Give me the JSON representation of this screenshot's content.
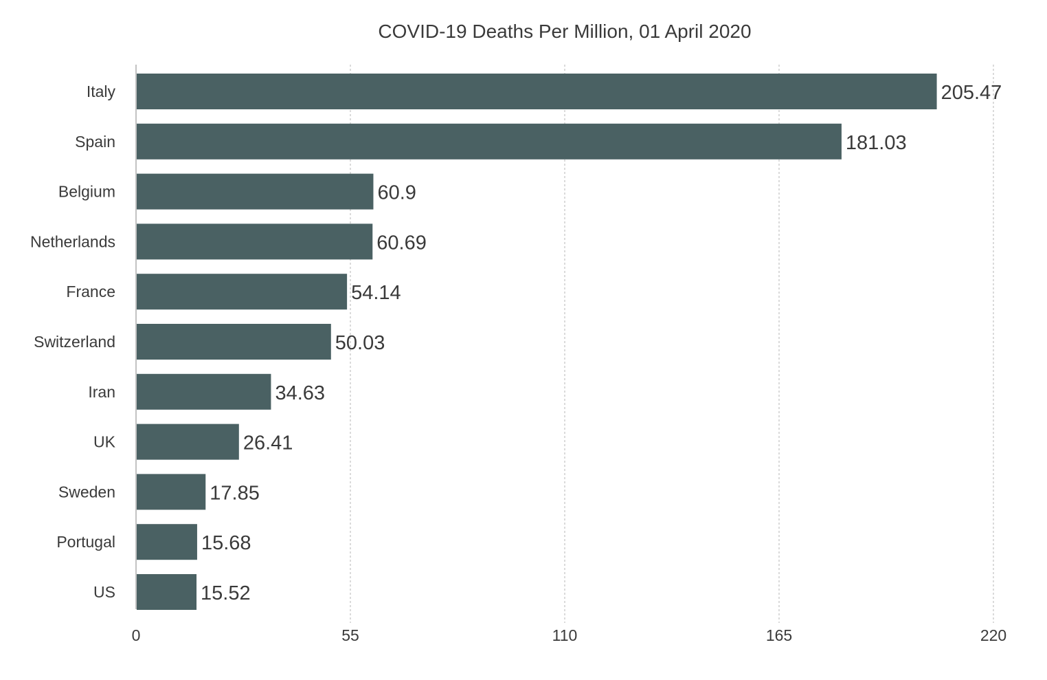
{
  "chart_data": {
    "type": "bar",
    "orientation": "horizontal",
    "title": "COVID-19 Deaths Per Million, 01 April 2020",
    "xlabel": "",
    "ylabel": "",
    "categories": [
      "Italy",
      "Spain",
      "Belgium",
      "Netherlands",
      "France",
      "Switzerland",
      "Iran",
      "UK",
      "Sweden",
      "Portugal",
      "US"
    ],
    "values": [
      205.47,
      181.03,
      60.9,
      60.69,
      54.14,
      50.03,
      34.63,
      26.41,
      17.85,
      15.68,
      15.52
    ],
    "value_labels": [
      "205.47",
      "181.03",
      "60.9",
      "60.69",
      "54.14",
      "50.03",
      "34.63",
      "26.41",
      "17.85",
      "15.68",
      "15.52"
    ],
    "xlim": [
      0,
      220
    ],
    "xticks": [
      0,
      55,
      110,
      165,
      220
    ],
    "grid": "vertical dashed",
    "legend": "none",
    "bar_color": "#4a6163",
    "text_color": "#3a3a3a",
    "grid_color": "#b5b5b5",
    "axis_color": "#9a9a9a"
  }
}
